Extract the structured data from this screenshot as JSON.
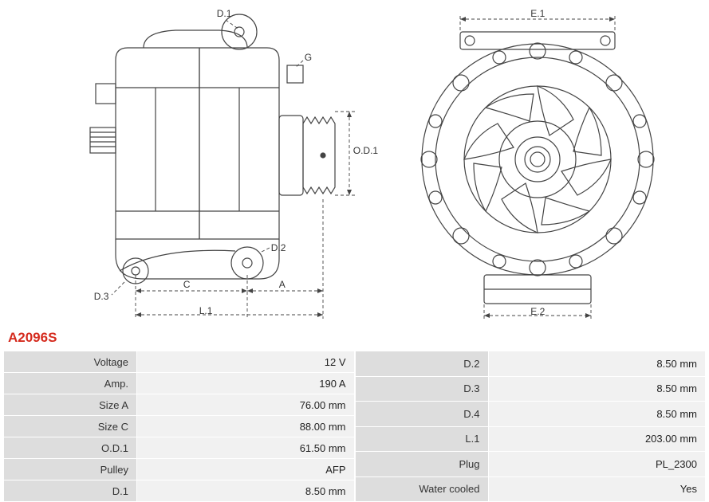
{
  "part_code": "A2096S",
  "diagram": {
    "stroke": "#444444",
    "stroke_width": 1.2,
    "dash": "4,3",
    "labels": [
      "D.1",
      "D.2",
      "D.3",
      "C",
      "A",
      "L.1",
      "G",
      "O.D.1",
      "E.1",
      "E.2"
    ]
  },
  "specs_left": [
    {
      "label": "Voltage",
      "value": "12 V"
    },
    {
      "label": "Amp.",
      "value": "190 A"
    },
    {
      "label": "Size A",
      "value": "76.00 mm"
    },
    {
      "label": "Size C",
      "value": "88.00 mm"
    },
    {
      "label": "O.D.1",
      "value": "61.50 mm"
    },
    {
      "label": "Pulley",
      "value": "AFP"
    },
    {
      "label": "D.1",
      "value": "8.50 mm"
    }
  ],
  "specs_right": [
    {
      "label": "D.2",
      "value": "8.50 mm"
    },
    {
      "label": "D.3",
      "value": "8.50 mm"
    },
    {
      "label": "D.4",
      "value": "8.50 mm"
    },
    {
      "label": "L.1",
      "value": "203.00 mm"
    },
    {
      "label": "Plug",
      "value": "PL_2300"
    },
    {
      "label": "Water cooled",
      "value": "Yes"
    }
  ]
}
